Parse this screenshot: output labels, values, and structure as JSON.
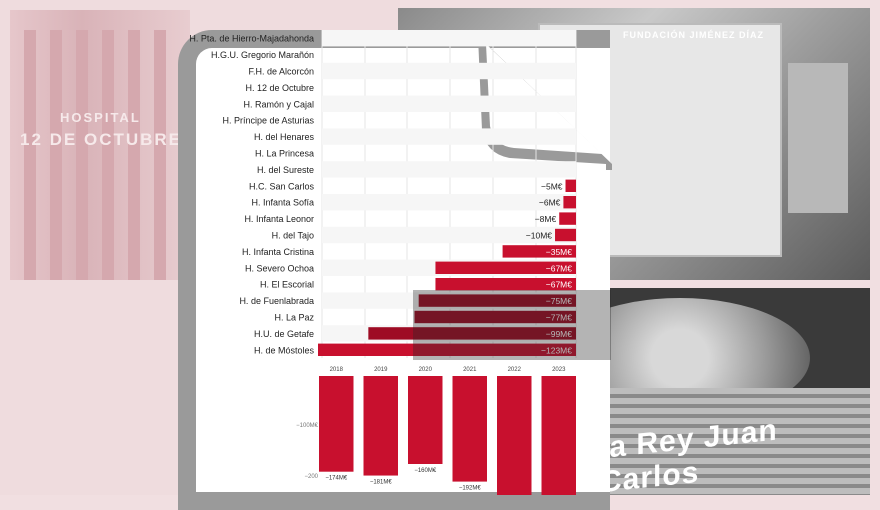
{
  "background": {
    "left_photo_sign_line1": "HOSPITAL",
    "left_photo_sign_line2": "12 DE OCTUBRE",
    "right_photo_sign": "FUNDACIÓN JIMÉNEZ DÍAZ",
    "bottom_photo_sign": "ia Rey Juan Carlos"
  },
  "chart_data": [
    {
      "type": "bar",
      "orientation": "horizontal",
      "categories": [
        "H. Pta. de Hierro-Majadahonda",
        "H.G.U. Gregorio Marañón",
        "F.H. de Alcorcón",
        "H. 12 de Octubre",
        "H. Ramón y Cajal",
        "H. Príncipe de Asturias",
        "H. del Henares",
        "H. La Princesa",
        "H. del Sureste",
        "H.C. San Carlos",
        "H. Infanta Sofía",
        "H. Infanta Leonor",
        "H. del Tajo",
        "H. Infanta Cristina",
        "H. Severo Ochoa",
        "H. El Escorial",
        "H. de Fuenlabrada",
        "H. La Paz",
        "H.U. de Getafe",
        "H. de Móstoles"
      ],
      "values": [
        0,
        0,
        0,
        0,
        0,
        0,
        0,
        0,
        0,
        -5,
        -6,
        -8,
        -10,
        -35,
        -67,
        -67,
        -75,
        -77,
        -99,
        -123
      ],
      "value_labels": [
        "",
        "",
        "",
        "",
        "",
        "",
        "",
        "",
        "",
        "−5M€",
        "−6M€",
        "−8M€",
        "−10M€",
        "−35M€",
        "−67M€",
        "−67M€",
        "−75M€",
        "−77M€",
        "−99M€",
        "−123M€"
      ],
      "grid": true,
      "bar_color": "#c8102e"
    },
    {
      "type": "bar",
      "categories": [
        "2018",
        "2019",
        "2020",
        "2021",
        "2022",
        "2023"
      ],
      "values": [
        -174,
        -181,
        -160,
        -192,
        null,
        null
      ],
      "value_labels": [
        "−174M€",
        "−181M€",
        "−160M€",
        "−192M€",
        "",
        ""
      ],
      "y_tick_labels": [
        "−100M€",
        "−200"
      ],
      "bar_color": "#c8102e"
    }
  ]
}
